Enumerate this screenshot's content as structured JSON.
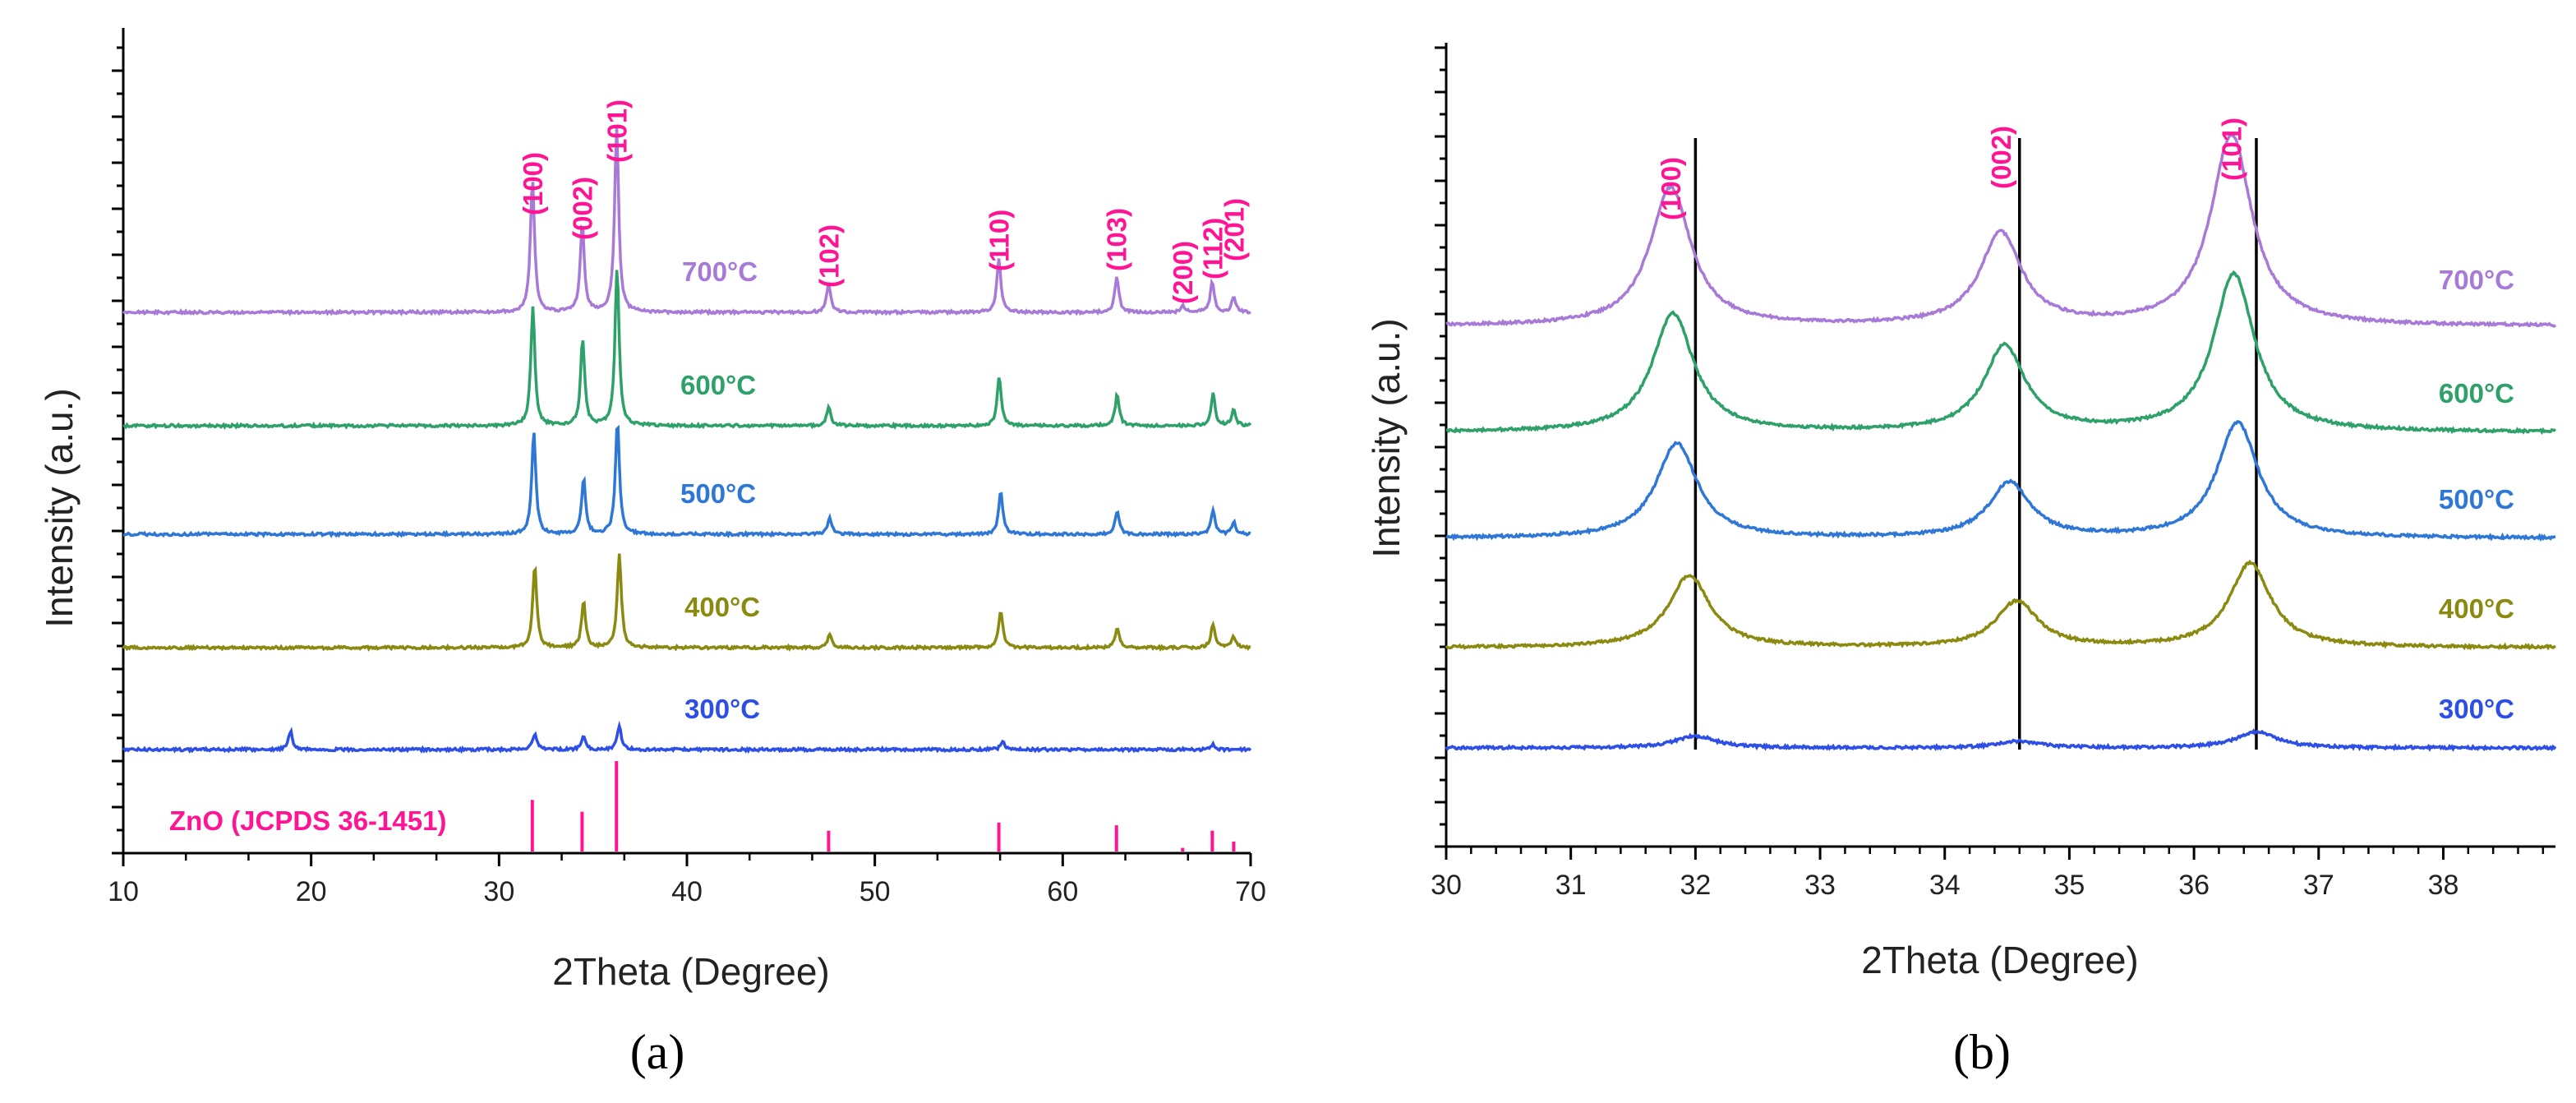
{
  "panels": [
    {
      "label": "(a)",
      "chart_data": {
        "type": "line",
        "xlabel": "2Theta (Degree)",
        "ylabel": "Intensity (a.u.)",
        "xlim": [
          10,
          70
        ],
        "xticks": [
          10,
          20,
          30,
          40,
          50,
          60,
          70
        ],
        "y_tick_labels": false,
        "grid": false,
        "reference": {
          "label": "ZnO  (JCPDS 36-1451)",
          "color": "#ff1493",
          "lines": [
            {
              "x": 31.77,
              "rel": 0.57
            },
            {
              "x": 34.42,
              "rel": 0.44
            },
            {
              "x": 36.25,
              "rel": 1.0
            },
            {
              "x": 47.54,
              "rel": 0.23
            },
            {
              "x": 56.6,
              "rel": 0.32
            },
            {
              "x": 62.86,
              "rel": 0.29
            },
            {
              "x": 66.38,
              "rel": 0.04
            },
            {
              "x": 67.96,
              "rel": 0.23
            },
            {
              "x": 69.1,
              "rel": 0.11
            }
          ]
        },
        "peak_labels": [
          {
            "text": "(100)",
            "x": 31.77
          },
          {
            "text": "(002)",
            "x": 34.42
          },
          {
            "text": "(101)",
            "x": 36.25
          },
          {
            "text": "(102)",
            "x": 47.54
          },
          {
            "text": "(110)",
            "x": 56.6
          },
          {
            "text": "(103)",
            "x": 62.86
          },
          {
            "text": "(200)",
            "x": 66.38
          },
          {
            "text": "(112)",
            "x": 67.96
          },
          {
            "text": "(201)",
            "x": 69.1
          }
        ],
        "series": [
          {
            "name": "300°C",
            "color": "#2d4fe6",
            "peaks": [
              [
                18.9,
                0.14
              ],
              [
                31.9,
                0.12
              ],
              [
                34.5,
                0.1
              ],
              [
                36.4,
                0.18
              ],
              [
                56.8,
                0.06
              ],
              [
                68.0,
                0.04
              ]
            ]
          },
          {
            "name": "400°C",
            "color": "#8a8a10",
            "peaks": [
              [
                31.9,
                0.62
              ],
              [
                34.5,
                0.35
              ],
              [
                36.4,
                0.72
              ],
              [
                47.6,
                0.1
              ],
              [
                56.7,
                0.28
              ],
              [
                62.9,
                0.15
              ],
              [
                68.0,
                0.18
              ],
              [
                69.1,
                0.08
              ]
            ]
          },
          {
            "name": "500°C",
            "color": "#2f77d6",
            "peaks": [
              [
                31.85,
                0.78
              ],
              [
                34.5,
                0.42
              ],
              [
                36.3,
                0.85
              ],
              [
                47.6,
                0.13
              ],
              [
                56.7,
                0.33
              ],
              [
                62.9,
                0.18
              ],
              [
                68.0,
                0.18
              ],
              [
                69.1,
                0.09
              ]
            ]
          },
          {
            "name": "600°C",
            "color": "#2ea06a",
            "peaks": [
              [
                31.8,
                0.9
              ],
              [
                34.45,
                0.66
              ],
              [
                36.28,
                1.2
              ],
              [
                47.55,
                0.15
              ],
              [
                56.62,
                0.38
              ],
              [
                62.9,
                0.24
              ],
              [
                68.0,
                0.24
              ],
              [
                69.1,
                0.12
              ]
            ]
          },
          {
            "name": "700°C",
            "color": "#a87ad8",
            "peaks": [
              [
                31.78,
                1.02
              ],
              [
                34.43,
                0.67
              ],
              [
                36.26,
                1.4
              ],
              [
                47.54,
                0.22
              ],
              [
                56.6,
                0.4
              ],
              [
                62.88,
                0.27
              ],
              [
                66.4,
                0.05
              ],
              [
                67.96,
                0.23
              ],
              [
                69.1,
                0.12
              ]
            ]
          }
        ]
      }
    },
    {
      "label": "(b)",
      "chart_data": {
        "type": "line",
        "xlabel": "2Theta (Degree)",
        "ylabel": "Intensity (a.u.)",
        "xlim": [
          30,
          38.9
        ],
        "xticks": [
          30,
          31,
          32,
          33,
          34,
          35,
          36,
          37,
          38
        ],
        "y_tick_labels": false,
        "grid": false,
        "reference_lines_x": [
          32.0,
          34.6,
          36.5
        ],
        "peak_labels": [
          {
            "text": "(100)",
            "x": 31.8
          },
          {
            "text": "(002)",
            "x": 34.45
          },
          {
            "text": "(101)",
            "x": 36.3
          }
        ],
        "series": [
          {
            "name": "300°C",
            "color": "#2d4fe6",
            "peaks": [
              [
                32.0,
                0.09
              ],
              [
                34.6,
                0.05
              ],
              [
                36.5,
                0.12
              ]
            ]
          },
          {
            "name": "400°C",
            "color": "#8a8a10",
            "peaks": [
              [
                31.95,
                0.55
              ],
              [
                34.58,
                0.35
              ],
              [
                36.45,
                0.64
              ]
            ]
          },
          {
            "name": "500°C",
            "color": "#2f77d6",
            "peaks": [
              [
                31.85,
                0.72
              ],
              [
                34.52,
                0.42
              ],
              [
                36.35,
                0.88
              ]
            ]
          },
          {
            "name": "600°C",
            "color": "#2ea06a",
            "peaks": [
              [
                31.82,
                0.9
              ],
              [
                34.48,
                0.65
              ],
              [
                36.32,
                1.2
              ]
            ]
          },
          {
            "name": "700°C",
            "color": "#a87ad8",
            "peaks": [
              [
                31.8,
                1.05
              ],
              [
                34.45,
                0.7
              ],
              [
                36.3,
                1.45
              ]
            ]
          }
        ]
      }
    }
  ]
}
